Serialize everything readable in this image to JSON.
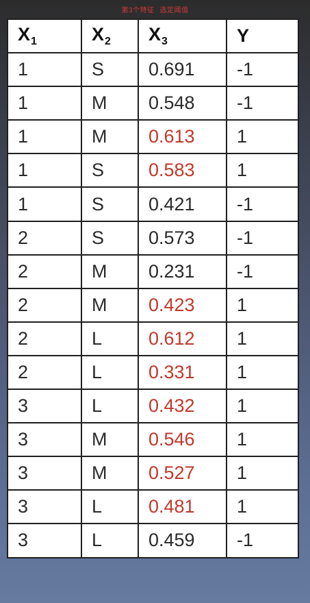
{
  "caption": {
    "part1": "第3个特征",
    "part2": "选定阈值"
  },
  "colors": {
    "highlight": "#c0392b",
    "text": "#2a2a2a",
    "border": "#1f1f1f"
  },
  "table": {
    "headers": [
      {
        "base": "X",
        "sub": "1"
      },
      {
        "base": "X",
        "sub": "2"
      },
      {
        "base": "X",
        "sub": "3"
      },
      {
        "base": "Y",
        "sub": ""
      }
    ],
    "rows": [
      {
        "x1": "1",
        "x2": "S",
        "x3": "0.691",
        "y": "-1",
        "highlight": false
      },
      {
        "x1": "1",
        "x2": "M",
        "x3": "0.548",
        "y": "-1",
        "highlight": false
      },
      {
        "x1": "1",
        "x2": "M",
        "x3": "0.613",
        "y": "1",
        "highlight": true
      },
      {
        "x1": "1",
        "x2": "S",
        "x3": "0.583",
        "y": "1",
        "highlight": true
      },
      {
        "x1": "1",
        "x2": "S",
        "x3": "0.421",
        "y": "-1",
        "highlight": false
      },
      {
        "x1": "2",
        "x2": "S",
        "x3": "0.573",
        "y": "-1",
        "highlight": false
      },
      {
        "x1": "2",
        "x2": "M",
        "x3": "0.231",
        "y": "-1",
        "highlight": false
      },
      {
        "x1": "2",
        "x2": "M",
        "x3": "0.423",
        "y": "1",
        "highlight": true
      },
      {
        "x1": "2",
        "x2": "L",
        "x3": "0.612",
        "y": "1",
        "highlight": true
      },
      {
        "x1": "2",
        "x2": "L",
        "x3": "0.331",
        "y": "1",
        "highlight": true
      },
      {
        "x1": "3",
        "x2": "L",
        "x3": "0.432",
        "y": "1",
        "highlight": true
      },
      {
        "x1": "3",
        "x2": "M",
        "x3": "0.546",
        "y": "1",
        "highlight": true
      },
      {
        "x1": "3",
        "x2": "M",
        "x3": "0.527",
        "y": "1",
        "highlight": true
      },
      {
        "x1": "3",
        "x2": "L",
        "x3": "0.481",
        "y": "1",
        "highlight": true
      },
      {
        "x1": "3",
        "x2": "L",
        "x3": "0.459",
        "y": "-1",
        "highlight": false
      }
    ]
  }
}
